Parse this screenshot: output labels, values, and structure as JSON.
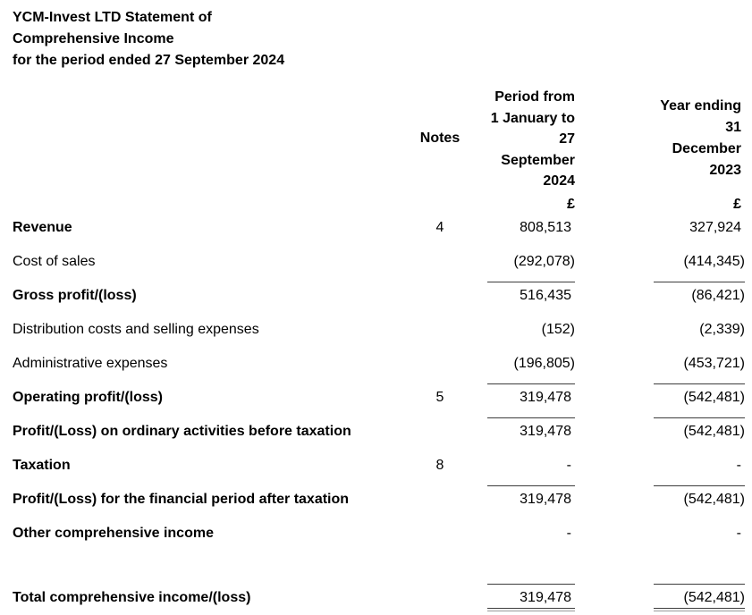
{
  "document": {
    "title_lines": [
      "YCM-Invest LTD Statement of",
      "Comprehensive Income",
      "for the period ended 27 September 2024"
    ]
  },
  "table": {
    "headers": {
      "notes": "Notes",
      "period_current_lines": [
        "Period from",
        "1 January to",
        "27",
        "September",
        "2024"
      ],
      "period_prior_lines": [
        "Year ending",
        "31",
        "December",
        "2023"
      ],
      "currency_current": "£",
      "currency_prior": "£"
    },
    "rows": [
      {
        "label": "Revenue",
        "bold": true,
        "note": "4",
        "current": "808,513",
        "prior": "327,924",
        "line_above": false,
        "line_below": false
      },
      {
        "label": "Cost of sales",
        "bold": false,
        "note": "",
        "current": "(292,078)",
        "prior": "(414,345)",
        "line_above": false,
        "line_below": false
      },
      {
        "label": "Gross profit/(loss)",
        "bold": true,
        "note": "",
        "current": "516,435",
        "prior": "(86,421)",
        "line_above": true,
        "line_below": false
      },
      {
        "label": "Distribution costs and selling expenses",
        "bold": false,
        "note": "",
        "current": "(152)",
        "prior": "(2,339)",
        "line_above": false,
        "line_below": false
      },
      {
        "label": "Administrative expenses",
        "bold": false,
        "note": "",
        "current": "(196,805)",
        "prior": "(453,721)",
        "line_above": false,
        "line_below": false
      },
      {
        "label": "Operating profit/(loss)",
        "bold": true,
        "note": "5",
        "current": "319,478",
        "prior": "(542,481)",
        "line_above": true,
        "line_below": false
      },
      {
        "label": "Profit/(Loss) on ordinary activities before taxation",
        "bold": true,
        "note": "",
        "current": "319,478",
        "prior": "(542,481)",
        "line_above": true,
        "line_below": false
      },
      {
        "label": "Taxation",
        "bold": true,
        "note": "8",
        "current": "-",
        "prior": "-",
        "line_above": false,
        "line_below": false
      },
      {
        "label": "Profit/(Loss) for the financial period after taxation",
        "bold": true,
        "note": "",
        "current": "319,478",
        "prior": "(542,481)",
        "line_above": true,
        "line_below": false
      },
      {
        "label": "Other comprehensive income",
        "bold": true,
        "note": "",
        "current": "-",
        "prior": "-",
        "line_above": false,
        "line_below": false
      },
      {
        "label": "Total comprehensive income/(loss)",
        "bold": true,
        "note": "",
        "current": "319,478",
        "prior": "(542,481)",
        "line_above": true,
        "line_below": true,
        "total": true
      }
    ]
  }
}
